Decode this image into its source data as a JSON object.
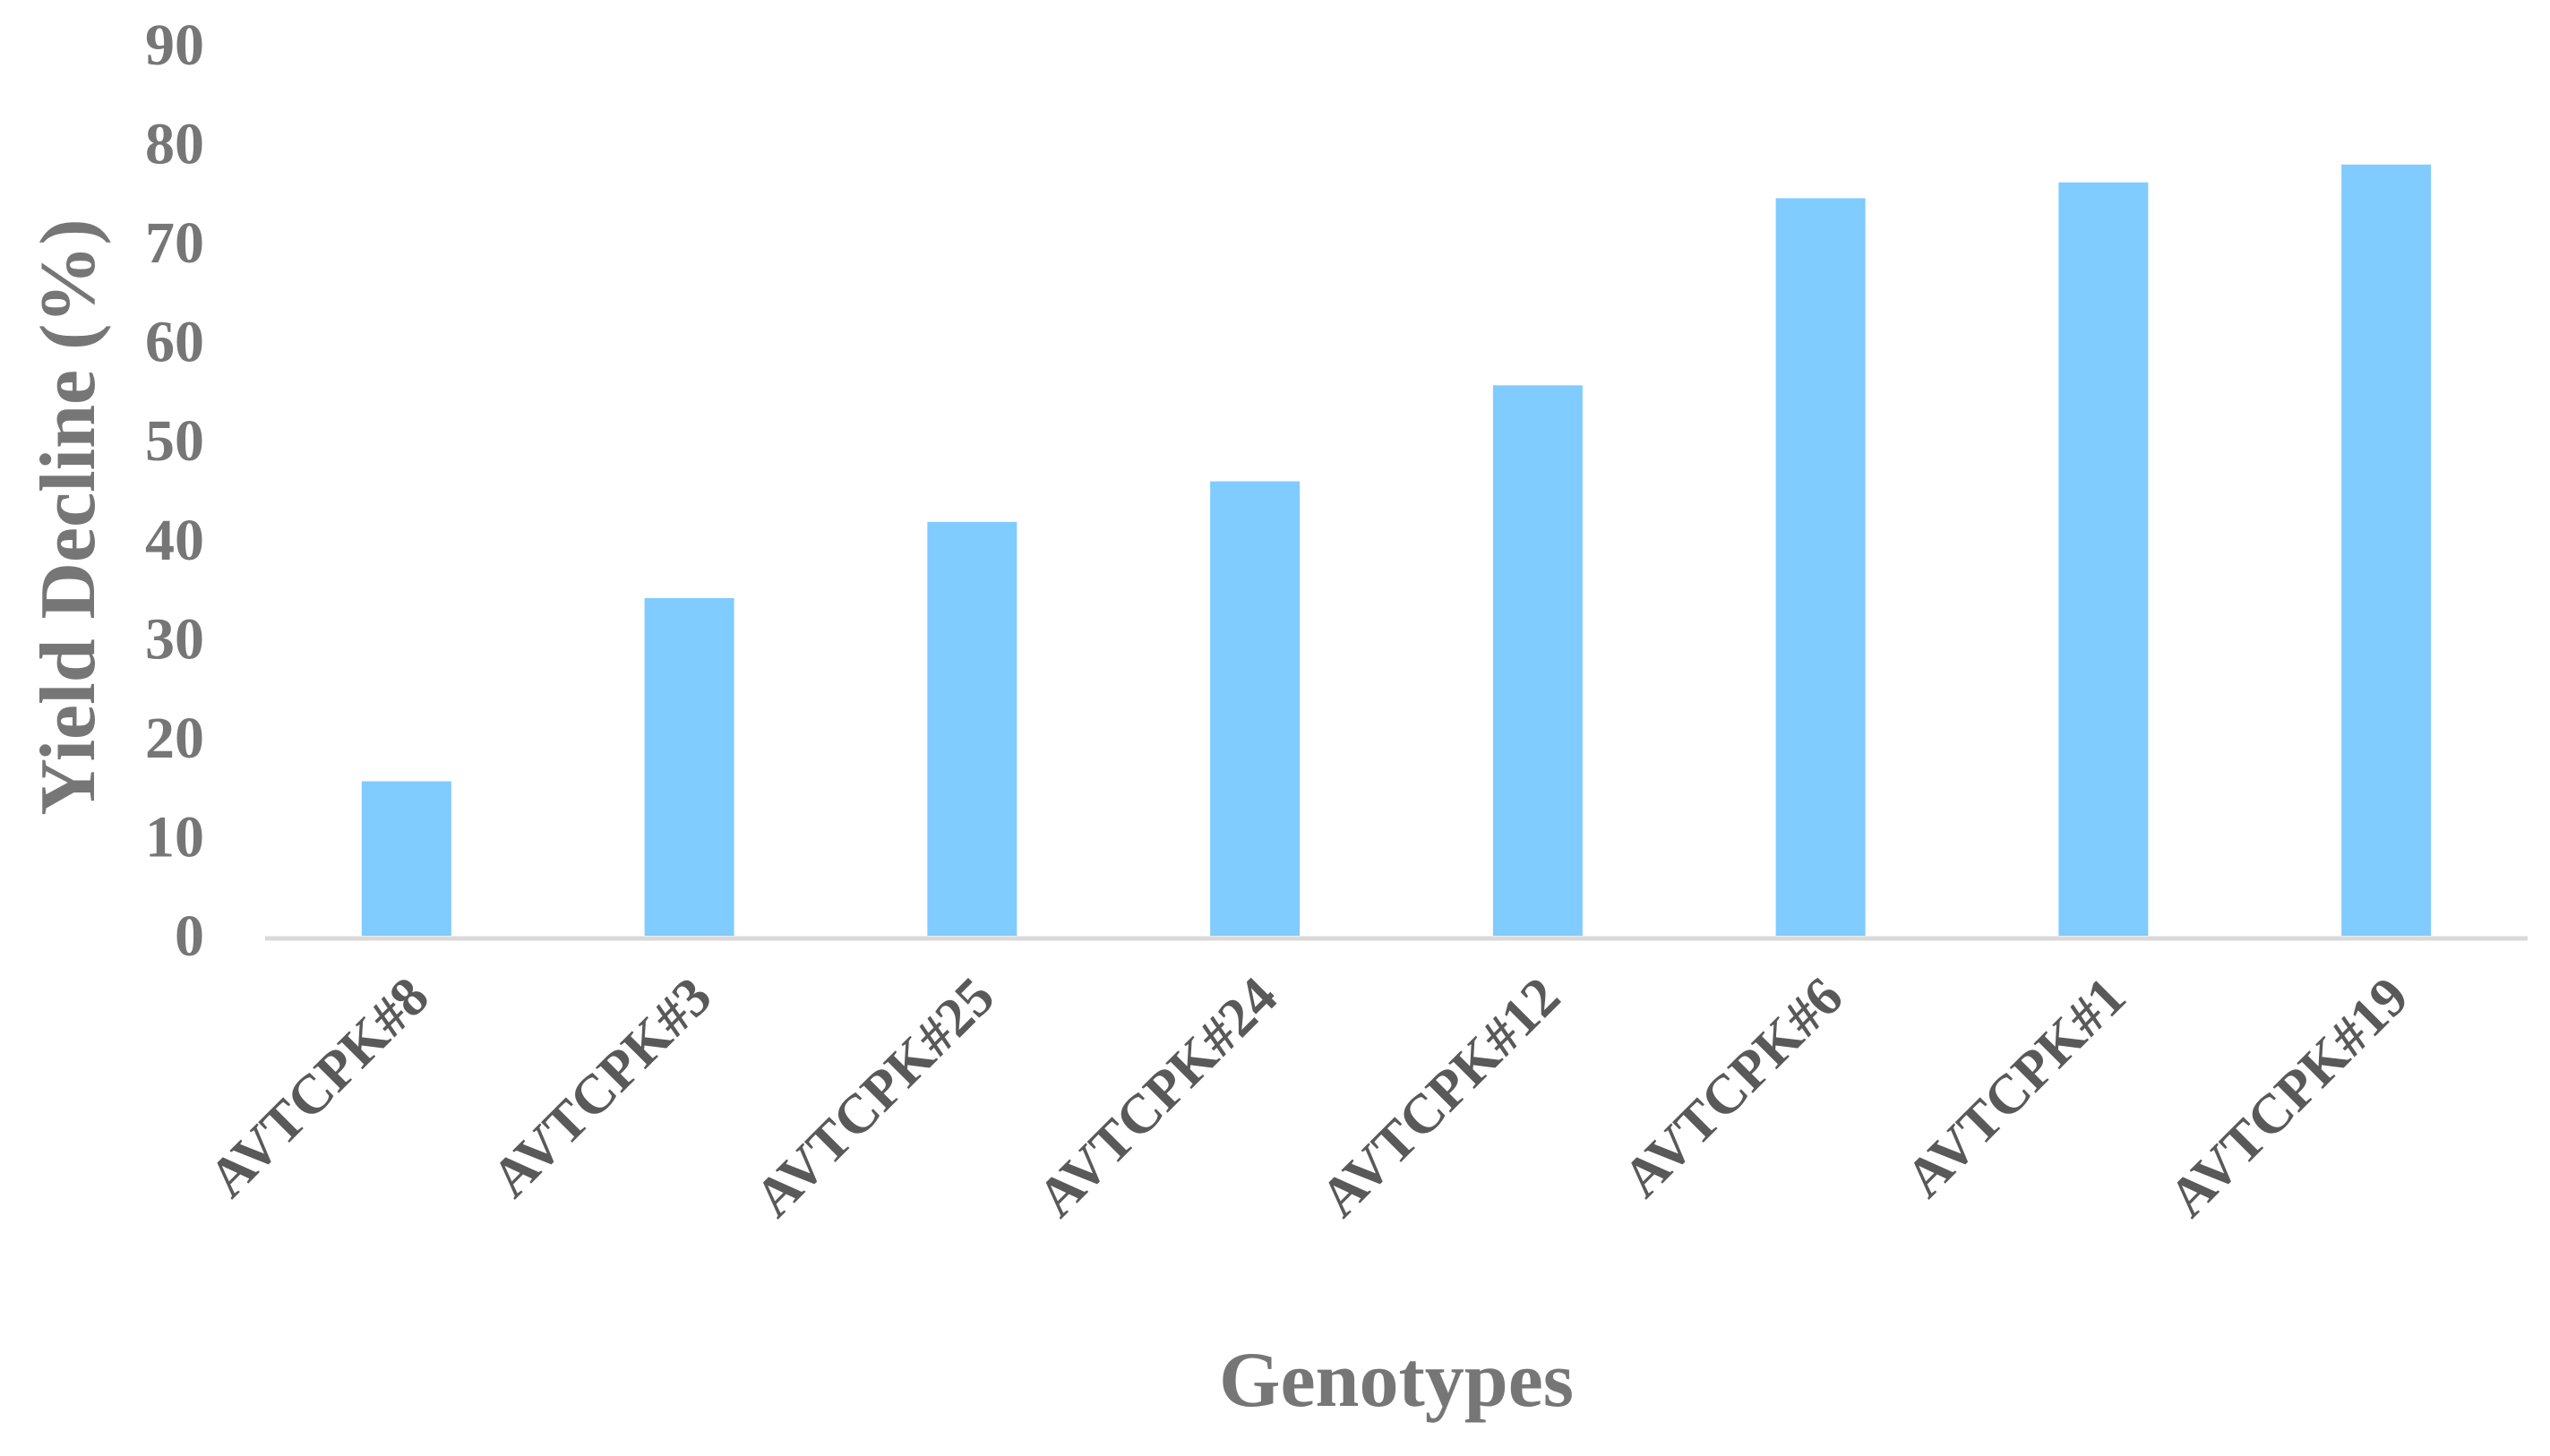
{
  "chart_data": {
    "type": "bar",
    "title": "",
    "xlabel": "Genotypes",
    "ylabel": "Yield Decline (%)",
    "categories": [
      "AVTCPK#8",
      "AVTCPK#3",
      "AVTCPK#25",
      "AVTCPK#24",
      "AVTCPK#12",
      "AVTCPK#6",
      "AVTCPK#1",
      "AVTCPK#19"
    ],
    "values": [
      15.6,
      34.1,
      41.8,
      45.9,
      55.6,
      74.5,
      76.1,
      77.9
    ],
    "ylim": [
      0,
      90
    ],
    "yticks": [
      0,
      10,
      20,
      30,
      40,
      50,
      60,
      70,
      80,
      90
    ],
    "grid": false,
    "legend": "none",
    "colors": {
      "bar": "#80CBFF",
      "axis_line": "#D9D9D9",
      "tick_text": "#767676",
      "category_text": "#595959",
      "axis_title_text": "#767676"
    }
  }
}
